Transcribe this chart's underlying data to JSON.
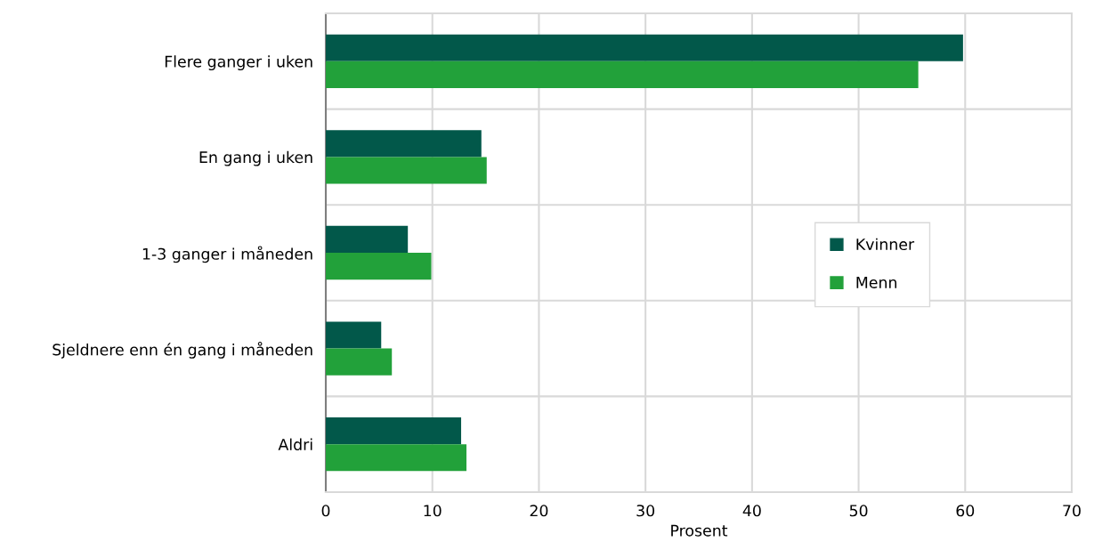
{
  "chart_data": {
    "type": "bar",
    "orientation": "horizontal",
    "xlabel": "Prosent",
    "categories": [
      "Flere ganger i uken",
      "En gang i uken",
      "1-3 ganger i måneden",
      "Sjeldnere enn én gang i måneden",
      "Aldri"
    ],
    "series": [
      {
        "name": "Kvinner",
        "color": "#02584a",
        "values": [
          59.8,
          14.6,
          7.7,
          5.2,
          12.7
        ]
      },
      {
        "name": "Menn",
        "color": "#22a13a",
        "values": [
          55.6,
          15.1,
          9.9,
          6.2,
          13.2
        ]
      }
    ],
    "xlim": [
      0,
      70
    ],
    "xticks": [
      0,
      10,
      20,
      30,
      40,
      50,
      60,
      70
    ],
    "grid": true,
    "legend": "center right"
  }
}
